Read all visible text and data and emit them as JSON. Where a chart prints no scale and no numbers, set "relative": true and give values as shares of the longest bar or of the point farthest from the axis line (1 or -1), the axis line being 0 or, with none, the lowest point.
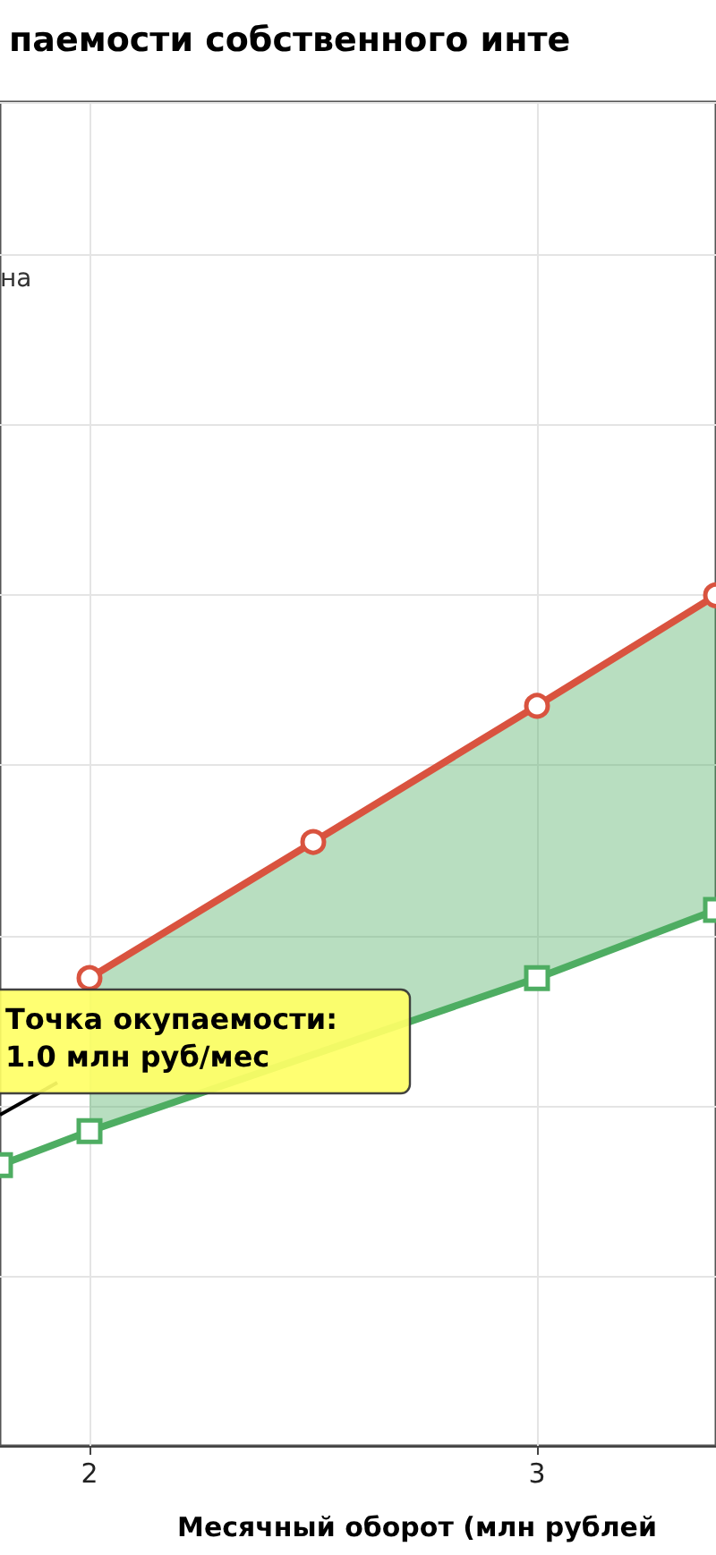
{
  "chart_data": {
    "type": "line",
    "title": "паемости собственного инте",
    "xlabel": "Месячный оборот (млн рублей",
    "relative": true,
    "xlim": [
      1.8,
      3.4
    ],
    "xticks": [
      2,
      3
    ],
    "grid": true,
    "line_style": "solid",
    "annotations": [
      "Точка окупаемости:\n1.0 млн руб/мес",
      "на"
    ],
    "series": [
      {
        "color": "#d9533f",
        "marker": "circle",
        "x": [
          2,
          2.5,
          3,
          3.4
        ],
        "values": [
          0.55,
          0.71,
          0.87,
          1.0
        ]
      },
      {
        "color": "#4ead62",
        "marker": "square",
        "x": [
          1.8,
          2,
          2.5,
          3,
          3.4
        ],
        "values": [
          0.33,
          0.37,
          null,
          0.55,
          0.63
        ],
        "lower": [
          null,
          0.37,
          null,
          0.55,
          0.63
        ],
        "upper": [
          null,
          0.55,
          null,
          0.87,
          1.0
        ]
      }
    ]
  }
}
